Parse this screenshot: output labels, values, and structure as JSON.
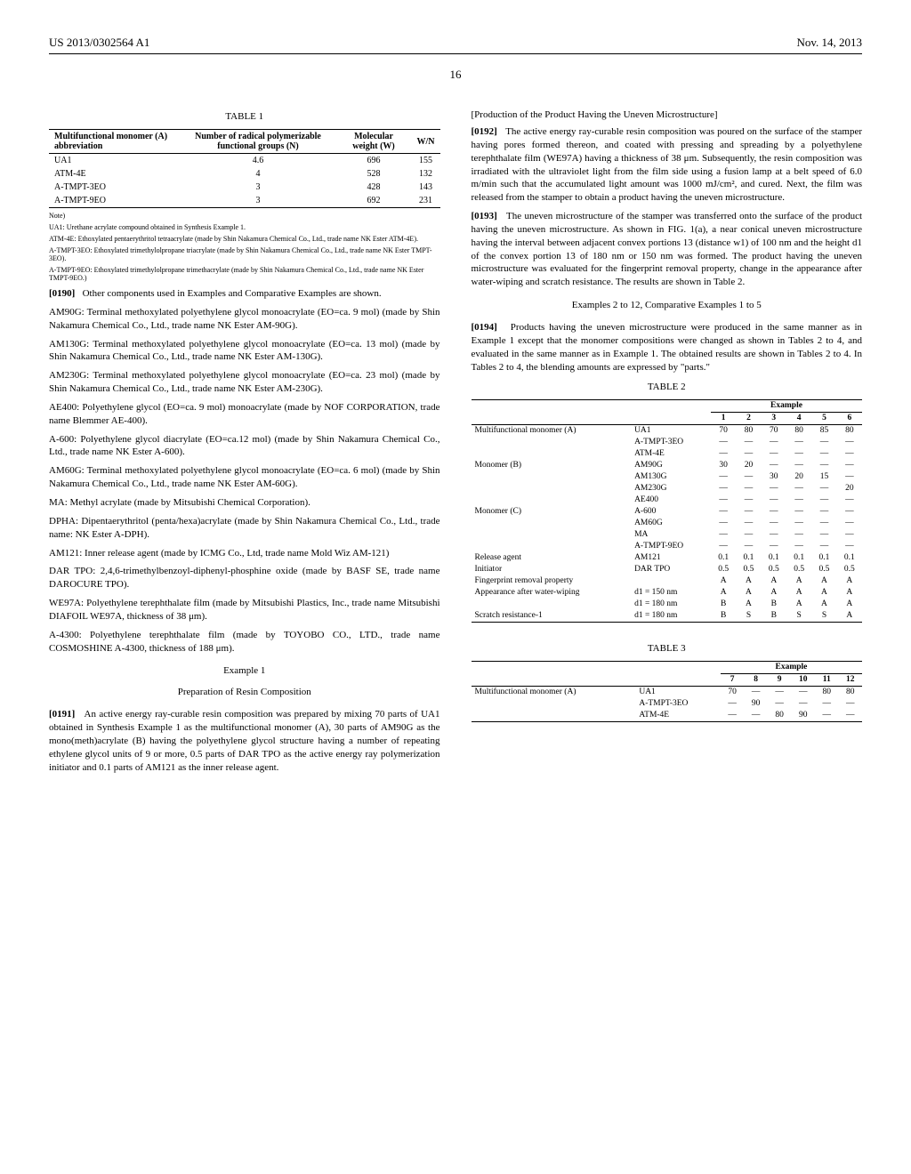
{
  "header": {
    "left": "US 2013/0302564 A1",
    "right": "Nov. 14, 2013"
  },
  "pagenum": "16",
  "table1": {
    "title": "TABLE 1",
    "headers": [
      "Multifunctional monomer (A) abbreviation",
      "Number of radical polymerizable functional groups (N)",
      "Molecular weight (W)",
      "W/N"
    ],
    "rows": [
      [
        "UA1",
        "4.6",
        "696",
        "155"
      ],
      [
        "ATM-4E",
        "4",
        "528",
        "132"
      ],
      [
        "A-TMPT-3EO",
        "3",
        "428",
        "143"
      ],
      [
        "A-TMPT-9EO",
        "3",
        "692",
        "231"
      ]
    ],
    "note": "Note)",
    "footnotes": [
      "UA1: Urethane acrylate compound obtained in Synthesis Example 1.",
      "ATM-4E: Ethoxylated pentaerythritol tetraacrylate (made by Shin Nakamura Chemical Co., Ltd., trade name NK Ester ATM-4E).",
      "A-TMPT-3EO: Ethoxylated trimethylolpropane triacrylate (made by Shin Nakamura Chemical Co., Ltd., trade name NK Ester TMPT-3EO).",
      "A-TMPT-9EO: Ethoxylated trimethylolpropane trimethacrylate (made by Shin Nakamura Chemical Co., Ltd., trade name NK Ester TMPT-9EO.)"
    ]
  },
  "p0190": {
    "num": "[0190]",
    "text": "Other components used in Examples and Comparative Examples are shown."
  },
  "defs": [
    "AM90G: Terminal methoxylated polyethylene glycol monoacrylate (EO=ca. 9 mol) (made by Shin Nakamura Chemical Co., Ltd., trade name NK Ester AM-90G).",
    "AM130G: Terminal methoxylated polyethylene glycol monoacrylate (EO=ca. 13 mol) (made by Shin Nakamura Chemical Co., Ltd., trade name NK Ester AM-130G).",
    "AM230G: Terminal methoxylated polyethylene glycol monoacrylate (EO=ca. 23 mol) (made by Shin Nakamura Chemical Co., Ltd., trade name NK Ester AM-230G).",
    "AE400: Polyethylene glycol (EO=ca. 9 mol) monoacrylate (made by NOF CORPORATION, trade name Blemmer AE-400).",
    "A-600: Polyethylene glycol diacrylate (EO=ca.12 mol) (made by Shin Nakamura Chemical Co., Ltd., trade name NK Ester A-600).",
    "AM60G: Terminal methoxylated polyethylene glycol monoacrylate (EO=ca. 6 mol) (made by Shin Nakamura Chemical Co., Ltd., trade name NK Ester AM-60G).",
    "MA: Methyl acrylate (made by Mitsubishi Chemical Corporation).",
    "DPHA: Dipentaerythritol (penta/hexa)acrylate (made by Shin Nakamura Chemical Co., Ltd., trade name: NK Ester A-DPH).",
    "AM121: Inner release agent (made by ICMG Co., Ltd, trade name Mold Wiz AM-121)",
    "DAR TPO: 2,4,6-trimethylbenzoyl-diphenyl-phosphine oxide (made by BASF SE, trade name DAROCURE TPO).",
    "WE97A: Polyethylene terephthalate film (made by Mitsubishi Plastics, Inc., trade name Mitsubishi DIAFOIL WE97A, thickness of 38 μm).",
    "A-4300: Polyethylene terephthalate film (made by TOYOBO CO., LTD., trade name COSMOSHINE A-4300, thickness of 188 μm)."
  ],
  "example1": {
    "title": "Example 1",
    "subtitle": "Preparation of Resin Composition"
  },
  "p0191": {
    "num": "[0191]",
    "text": "An active energy ray-curable resin composition was prepared by mixing 70 parts of UA1 obtained in Synthesis Example 1 as the multifunctional monomer (A), 30 parts of AM90G as the mono(meth)acrylate (B) having the polyethylene glycol structure having a number of repeating ethylene glycol units of 9 or more, 0.5 parts of DAR TPO as the active energy ray polymerization initiator and 0.1 parts of AM121 as the inner release agent."
  },
  "rcol_head": "[Production of the Product Having the Uneven Microstructure]",
  "p0192": {
    "num": "[0192]",
    "text": "The active energy ray-curable resin composition was poured on the surface of the stamper having pores formed thereon, and coated with pressing and spreading by a polyethylene terephthalate film (WE97A) having a thickness of 38 μm. Subsequently, the resin composition was irradiated with the ultraviolet light from the film side using a fusion lamp at a belt speed of 6.0 m/min such that the accumulated light amount was 1000 mJ/cm², and cured. Next, the film was released from the stamper to obtain a product having the uneven microstructure."
  },
  "p0193": {
    "num": "[0193]",
    "text": "The uneven microstructure of the stamper was transferred onto the surface of the product having the uneven microstructure. As shown in FIG. 1(a), a near conical uneven microstructure having the interval between adjacent convex portions 13 (distance w1) of 100 nm and the height d1 of the convex portion 13 of 180 nm or 150 nm was formed. The product having the uneven microstructure was evaluated for the fingerprint removal property, change in the appearance after water-wiping and scratch resistance. The results are shown in Table 2."
  },
  "ex2to12": "Examples 2 to 12, Comparative Examples 1 to 5",
  "p0194": {
    "num": "[0194]",
    "text": "Products having the uneven microstructure were produced in the same manner as in Example 1 except that the monomer compositions were changed as shown in Tables 2 to 4, and evaluated in the same manner as in Example 1. The obtained results are shown in Tables 2 to 4. In Tables 2 to 4, the blending amounts are expressed by \"parts.\""
  },
  "table2": {
    "title": "TABLE 2",
    "super": "Example",
    "cols": [
      "1",
      "2",
      "3",
      "4",
      "5",
      "6"
    ],
    "rows": [
      [
        "Multifunctional monomer (A)",
        "UA1",
        "70",
        "80",
        "70",
        "80",
        "85",
        "80"
      ],
      [
        "",
        "A-TMPT-3EO",
        "—",
        "—",
        "—",
        "—",
        "—",
        "—"
      ],
      [
        "",
        "ATM-4E",
        "—",
        "—",
        "—",
        "—",
        "—",
        "—"
      ],
      [
        "Monomer (B)",
        "AM90G",
        "30",
        "20",
        "—",
        "—",
        "—",
        "—"
      ],
      [
        "",
        "AM130G",
        "—",
        "—",
        "30",
        "20",
        "15",
        "—"
      ],
      [
        "",
        "AM230G",
        "—",
        "—",
        "—",
        "—",
        "—",
        "20"
      ],
      [
        "",
        "AE400",
        "—",
        "—",
        "—",
        "—",
        "—",
        "—"
      ],
      [
        "Monomer (C)",
        "A-600",
        "—",
        "—",
        "—",
        "—",
        "—",
        "—"
      ],
      [
        "",
        "AM60G",
        "—",
        "—",
        "—",
        "—",
        "—",
        "—"
      ],
      [
        "",
        "MA",
        "—",
        "—",
        "—",
        "—",
        "—",
        "—"
      ],
      [
        "",
        "A-TMPT-9EO",
        "—",
        "—",
        "—",
        "—",
        "—",
        "—"
      ],
      [
        "Release agent",
        "AM121",
        "0.1",
        "0.1",
        "0.1",
        "0.1",
        "0.1",
        "0.1"
      ],
      [
        "Initiator",
        "DAR TPO",
        "0.5",
        "0.5",
        "0.5",
        "0.5",
        "0.5",
        "0.5"
      ],
      [
        "Fingerprint removal property",
        "",
        "A",
        "A",
        "A",
        "A",
        "A",
        "A"
      ],
      [
        "Appearance after water-wiping",
        "d1 = 150 nm",
        "A",
        "A",
        "A",
        "A",
        "A",
        "A"
      ],
      [
        "",
        "d1 = 180 nm",
        "B",
        "A",
        "B",
        "A",
        "A",
        "A"
      ],
      [
        "Scratch resistance-1",
        "d1 = 180 nm",
        "B",
        "S",
        "B",
        "S",
        "S",
        "A"
      ]
    ]
  },
  "table3": {
    "title": "TABLE 3",
    "super": "Example",
    "cols": [
      "7",
      "8",
      "9",
      "10",
      "11",
      "12"
    ],
    "rows": [
      [
        "Multifunctional monomer (A)",
        "UA1",
        "70",
        "—",
        "—",
        "—",
        "80",
        "80"
      ],
      [
        "",
        "A-TMPT-3EO",
        "—",
        "90",
        "—",
        "—",
        "—",
        "—"
      ],
      [
        "",
        "ATM-4E",
        "—",
        "—",
        "80",
        "90",
        "—",
        "—"
      ]
    ]
  }
}
